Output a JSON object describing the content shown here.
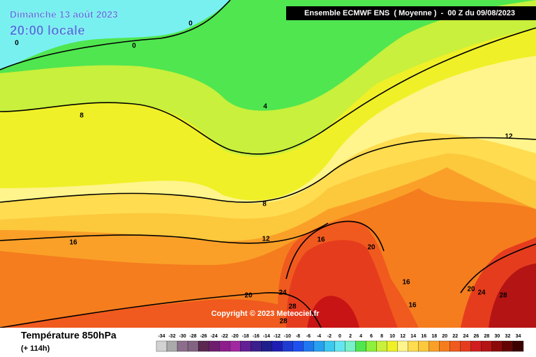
{
  "header": {
    "date": "Dimanche 13 août 2023",
    "time": "20:00 locale",
    "model": "Ensemble ECMWF ENS  ( Moyenne )  -  00 Z du 09/08/2023"
  },
  "copyright": "Copyright © 2023 Meteociel.fr",
  "footer": {
    "parameter": "Température 850hPa",
    "lead": "(+ 114h)"
  },
  "contour_labels": [
    0,
    0,
    0,
    8,
    4,
    12,
    8,
    16,
    12,
    16,
    20,
    16,
    16,
    20,
    24,
    28,
    20,
    24,
    28,
    28
  ],
  "legend": {
    "values": [
      -34,
      -32,
      -30,
      -28,
      -26,
      -24,
      -22,
      -20,
      -18,
      -16,
      -14,
      -12,
      -10,
      -8,
      -6,
      -4,
      -2,
      0,
      2,
      4,
      6,
      8,
      10,
      12,
      14,
      16,
      18,
      20,
      22,
      24,
      26,
      28,
      30,
      32,
      34
    ],
    "colors": [
      "#d2d2d2",
      "#aaaaaa",
      "#8c6e8c",
      "#826482",
      "#5a2850",
      "#6e1e6e",
      "#8c1e8c",
      "#a028a0",
      "#641e96",
      "#3c1e8c",
      "#1e1e8c",
      "#1e1eb4",
      "#1e3cd2",
      "#1e50f0",
      "#1e78f0",
      "#28a0f0",
      "#3cc8f0",
      "#64e6f0",
      "#78f0c8",
      "#50e650",
      "#8cf03c",
      "#c8f03c",
      "#f0f028",
      "#fff58c",
      "#ffdc50",
      "#fcc83c",
      "#faa028",
      "#f57d1e",
      "#f05a1e",
      "#e63c1e",
      "#d21e1e",
      "#b41414",
      "#8c0a0a",
      "#640505",
      "#3c0000"
    ]
  }
}
